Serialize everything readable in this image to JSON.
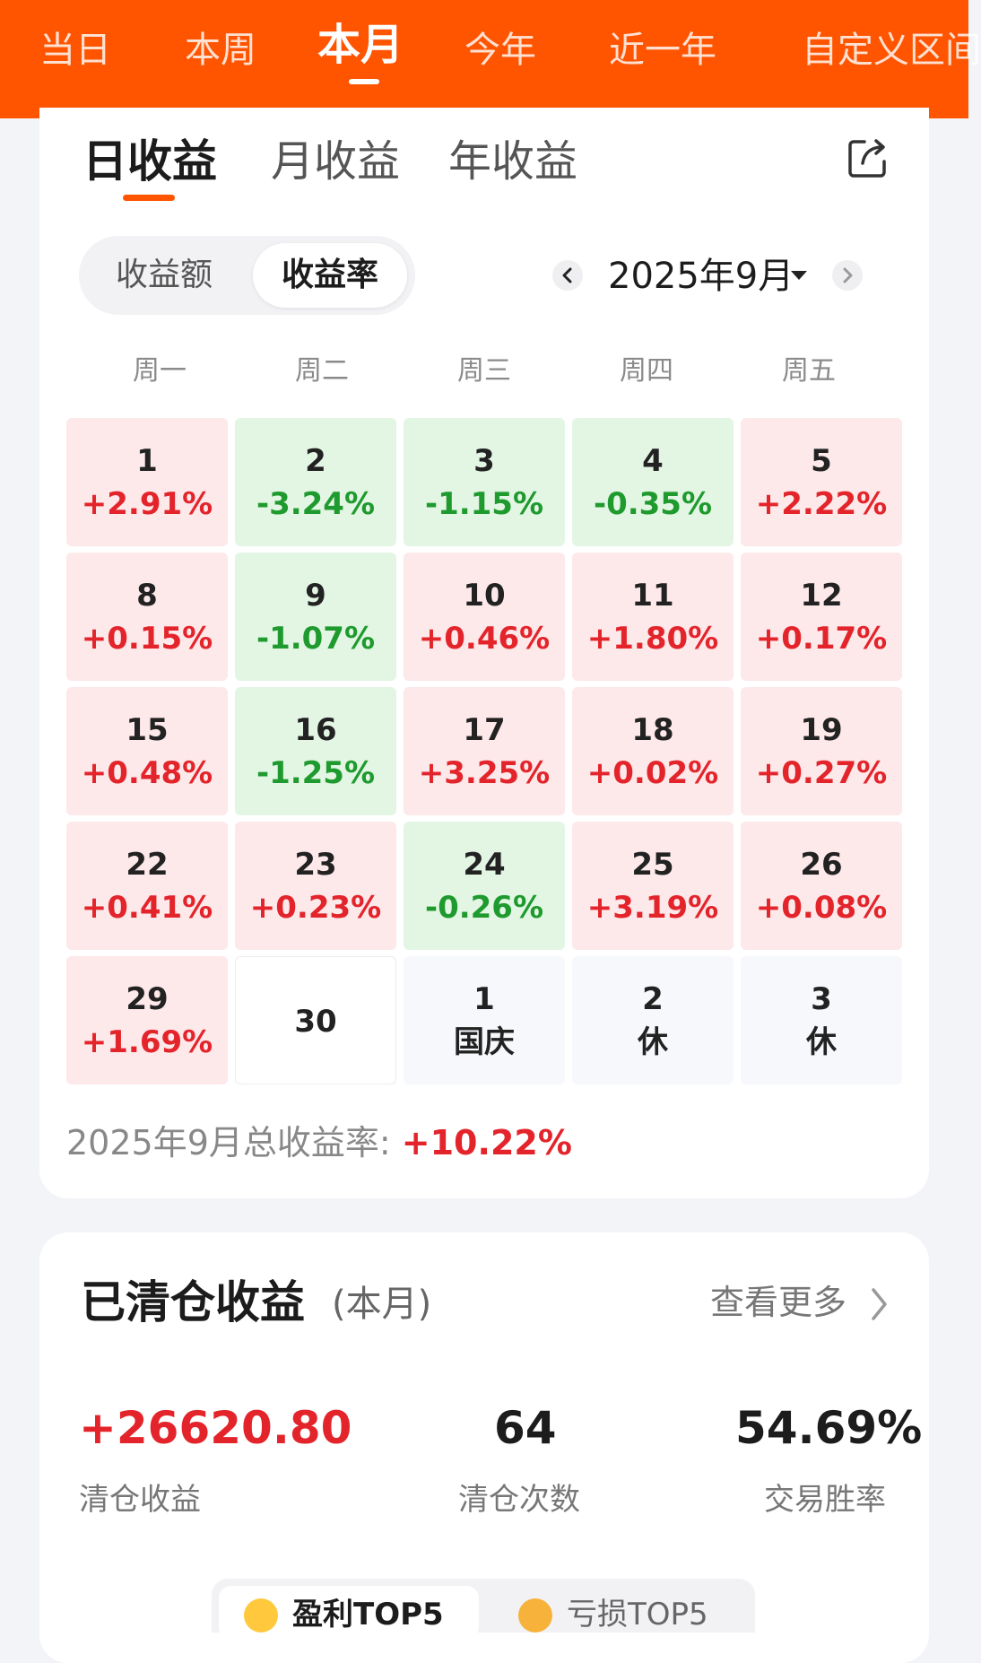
{
  "top_tabs": [
    {
      "label": "当日",
      "active": false
    },
    {
      "label": "本周",
      "active": false
    },
    {
      "label": "本月",
      "active": true
    },
    {
      "label": "今年",
      "active": false
    },
    {
      "label": "近一年",
      "active": false
    },
    {
      "label": "自定义区间",
      "active": false
    }
  ],
  "sub_tabs": [
    {
      "label": "日收益",
      "active": true
    },
    {
      "label": "月收益",
      "active": false
    },
    {
      "label": "年收益",
      "active": false
    }
  ],
  "segment": {
    "amount_label": "收益额",
    "rate_label": "收益率",
    "selected": "rate"
  },
  "month_picker": {
    "label": "2025年9月"
  },
  "weekdays": [
    "周一",
    "周二",
    "周三",
    "周四",
    "周五"
  ],
  "calendar": [
    [
      {
        "day": "1",
        "value": "+2.91%",
        "state": "up"
      },
      {
        "day": "2",
        "value": "-3.24%",
        "state": "down"
      },
      {
        "day": "3",
        "value": "-1.15%",
        "state": "down"
      },
      {
        "day": "4",
        "value": "-0.35%",
        "state": "down"
      },
      {
        "day": "5",
        "value": "+2.22%",
        "state": "up"
      }
    ],
    [
      {
        "day": "8",
        "value": "+0.15%",
        "state": "up"
      },
      {
        "day": "9",
        "value": "-1.07%",
        "state": "down"
      },
      {
        "day": "10",
        "value": "+0.46%",
        "state": "up"
      },
      {
        "day": "11",
        "value": "+1.80%",
        "state": "up"
      },
      {
        "day": "12",
        "value": "+0.17%",
        "state": "up"
      }
    ],
    [
      {
        "day": "15",
        "value": "+0.48%",
        "state": "up"
      },
      {
        "day": "16",
        "value": "-1.25%",
        "state": "down"
      },
      {
        "day": "17",
        "value": "+3.25%",
        "state": "up"
      },
      {
        "day": "18",
        "value": "+0.02%",
        "state": "up"
      },
      {
        "day": "19",
        "value": "+0.27%",
        "state": "up"
      }
    ],
    [
      {
        "day": "22",
        "value": "+0.41%",
        "state": "up"
      },
      {
        "day": "23",
        "value": "+0.23%",
        "state": "up"
      },
      {
        "day": "24",
        "value": "-0.26%",
        "state": "down"
      },
      {
        "day": "25",
        "value": "+3.19%",
        "state": "up"
      },
      {
        "day": "26",
        "value": "+0.08%",
        "state": "up"
      }
    ],
    [
      {
        "day": "29",
        "value": "+1.69%",
        "state": "up"
      },
      {
        "day": "30",
        "value": "",
        "state": "empty"
      },
      {
        "day": "1",
        "value": "国庆",
        "state": "holiday"
      },
      {
        "day": "2",
        "value": "休",
        "state": "holiday"
      },
      {
        "day": "3",
        "value": "休",
        "state": "holiday"
      }
    ]
  ],
  "total": {
    "label": "2025年9月总收益率: ",
    "value": "+10.22%"
  },
  "cleared": {
    "title": "已清仓收益",
    "period": "(本月)",
    "more_label": "查看更多",
    "profit_value": "+26620.80",
    "profit_label": "清仓收益",
    "count_value": "64",
    "count_label": "清仓次数",
    "winrate_value": "54.69%",
    "winrate_label": "交易胜率"
  },
  "rank_tabs": {
    "profit_label": "盈利TOP5",
    "loss_label": "亏损TOP5"
  },
  "colors": {
    "brand": "#ff5400",
    "up": "#e3242b",
    "down": "#1e9a2e",
    "up_bg": "#fde8ea",
    "down_bg": "#e3f6e4"
  }
}
